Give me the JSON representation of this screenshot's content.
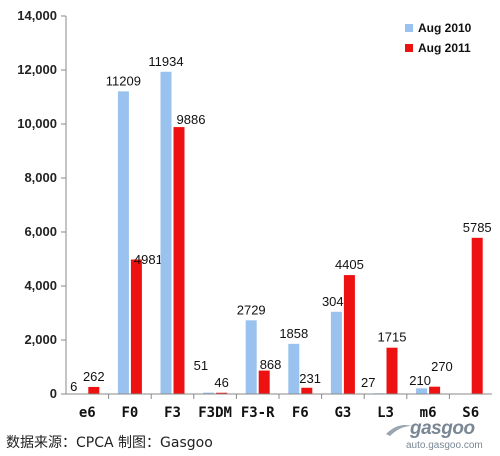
{
  "chart_data": {
    "type": "bar",
    "categories": [
      "e6",
      "F0",
      "F3",
      "F3DM",
      "F3-R",
      "F6",
      "G3",
      "L3",
      "m6",
      "S6"
    ],
    "series": [
      {
        "name": "Aug 2010",
        "color": "#99c2ee",
        "values": [
          6,
          11209,
          11934,
          51,
          2729,
          1858,
          3045,
          27,
          210,
          null
        ],
        "labels": [
          "6",
          "11209",
          "11934",
          "51",
          "2729",
          "1858",
          "3045",
          "27",
          "210",
          ""
        ]
      },
      {
        "name": "Aug 2011",
        "color": "#ee1111",
        "values": [
          262,
          4981,
          9886,
          46,
          868,
          231,
          4405,
          1715,
          270,
          5785
        ],
        "labels": [
          "262",
          "4981",
          "9886",
          "46",
          "868",
          "231",
          "4405",
          "1715",
          "270",
          "5785"
        ]
      }
    ],
    "ylim": [
      0,
      14000
    ],
    "yticks": [
      0,
      2000,
      4000,
      6000,
      8000,
      10000,
      12000,
      14000
    ],
    "ytick_labels": [
      "0",
      "2,000",
      "4,000",
      "6,000",
      "8,000",
      "10,000",
      "12,000",
      "14,000"
    ],
    "legend_position": "top-right",
    "grid": false
  },
  "source_note": "数据来源：CPCA 制图：Gasgoo",
  "watermark": {
    "brand": "gasgoo",
    "url": "auto.gasgoo.com"
  }
}
